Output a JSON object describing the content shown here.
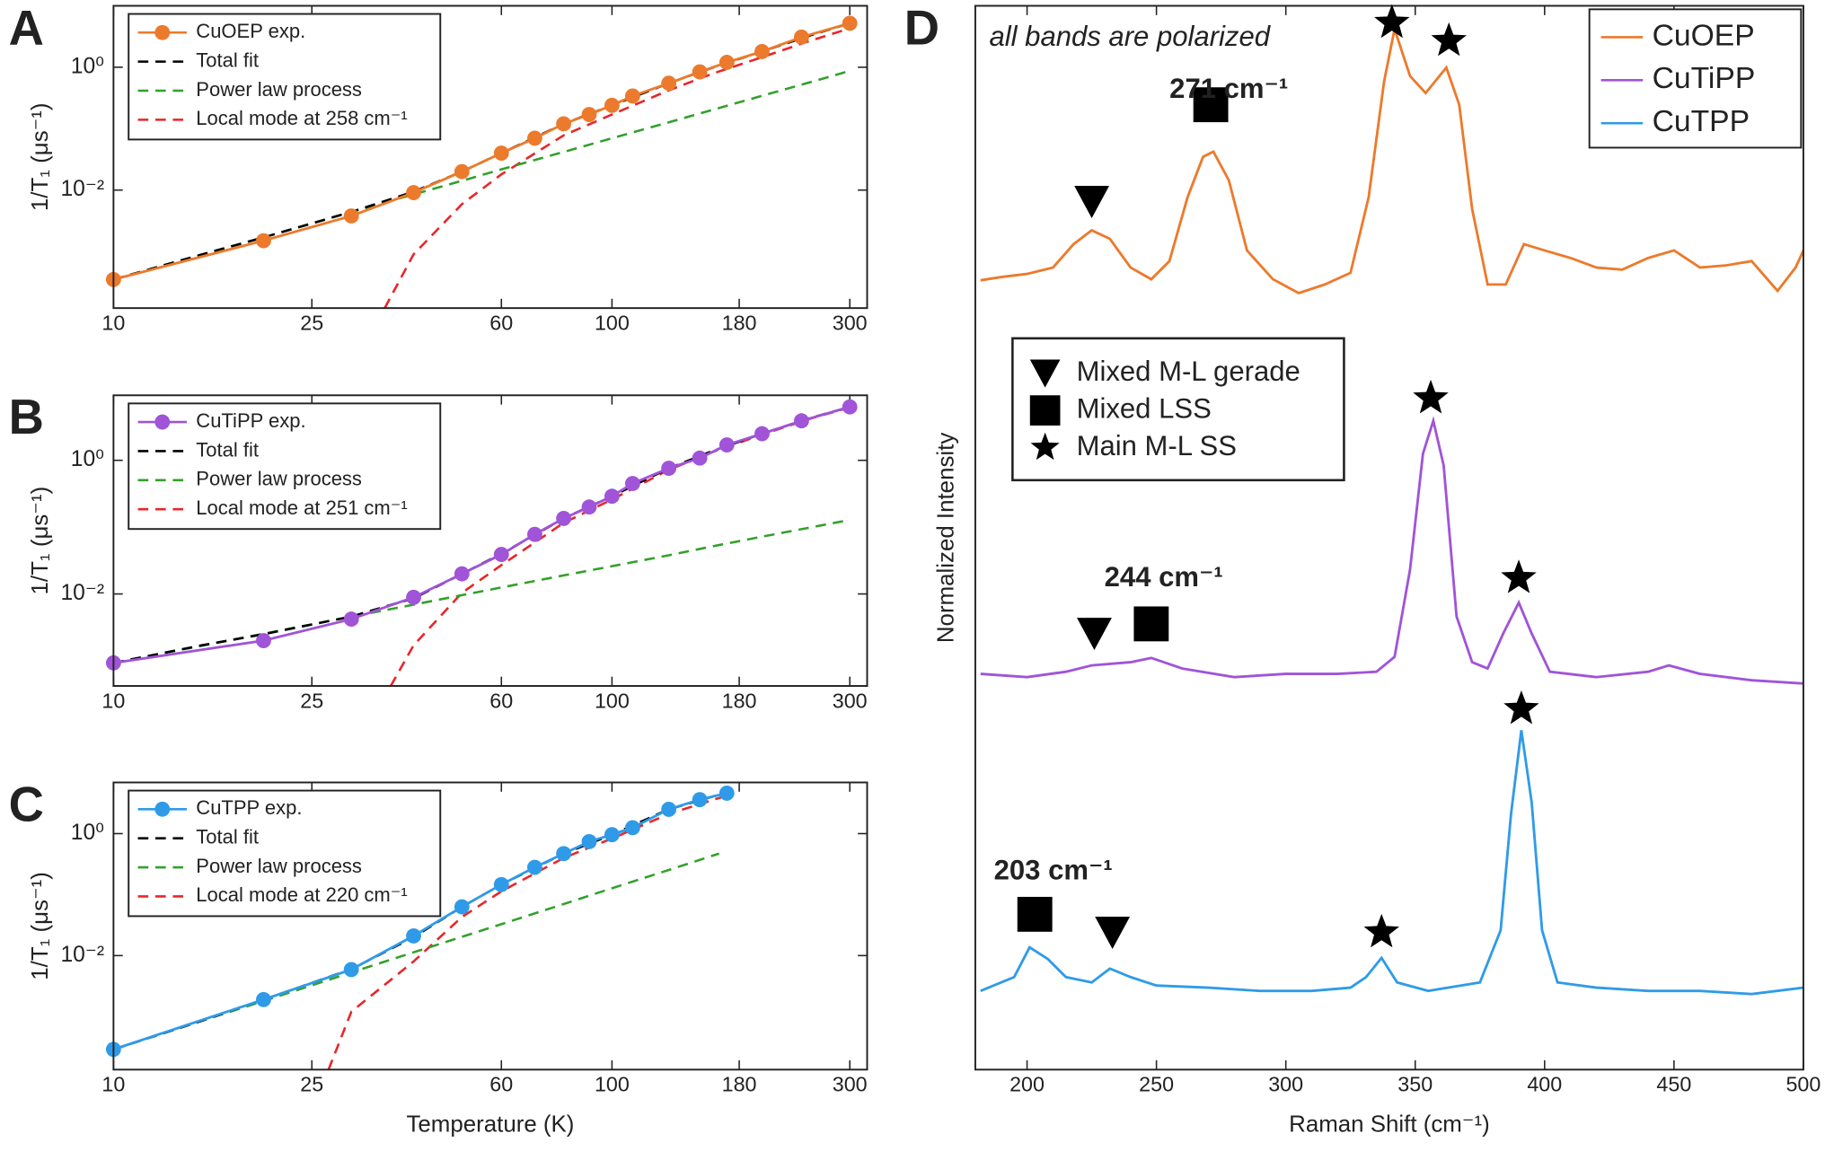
{
  "chart_data": [
    {
      "type": "line",
      "panel_label": "A",
      "xscale": "log",
      "yscale": "log",
      "ylabel": "1/T₁ (μs⁻¹)",
      "xlim": [
        10,
        325
      ],
      "xticks": [
        10,
        25,
        60,
        100,
        180,
        300
      ],
      "ylim": [
        0.00012,
        10
      ],
      "yticks": [
        {
          "value": 0.01,
          "label": "10⁻²"
        },
        {
          "value": 1,
          "label": "10⁰"
        }
      ],
      "legend": "upper left",
      "series": [
        {
          "name": "CuOEP exp.",
          "color": "#ec7a2c",
          "style": "solid",
          "marker": "circle",
          "x": [
            10,
            20,
            30,
            40,
            50,
            60,
            70,
            80,
            90,
            100,
            110,
            130,
            150,
            170,
            200,
            240,
            300
          ],
          "values": [
            0.00035,
            0.0015,
            0.0038,
            0.0091,
            0.02,
            0.04,
            0.07,
            0.12,
            0.17,
            0.24,
            0.34,
            0.55,
            0.84,
            1.2,
            1.8,
            3.1,
            5.2
          ]
        },
        {
          "name": "Total fit",
          "color": "#000000",
          "style": "dashed",
          "x": [
            10,
            15,
            20,
            30,
            40,
            50,
            60,
            80,
            100,
            130,
            160,
            200,
            250,
            300
          ],
          "values": [
            0.00035,
            0.00089,
            0.0017,
            0.0044,
            0.0094,
            0.02,
            0.04,
            0.12,
            0.24,
            0.55,
            1.0,
            1.8,
            3.3,
            5.2
          ]
        },
        {
          "name": "Power law process",
          "color": "#33a02c",
          "style": "dashed",
          "x": [
            10,
            15,
            20,
            30,
            40,
            50,
            60,
            80,
            100,
            130,
            160,
            200,
            250,
            300
          ],
          "values": [
            0.00035,
            0.00089,
            0.0017,
            0.0044,
            0.0085,
            0.0142,
            0.0217,
            0.0417,
            0.07,
            0.127,
            0.205,
            0.343,
            0.57,
            0.87
          ]
        },
        {
          "name": "Local mode at 258 cm⁻¹",
          "color": "#e8262a",
          "style": "dashed",
          "x": [
            35,
            40,
            50,
            60,
            80,
            100,
            130,
            160,
            200,
            250,
            300
          ],
          "values": [
            0.00012,
            0.0009,
            0.0059,
            0.018,
            0.078,
            0.17,
            0.42,
            0.8,
            1.46,
            2.7,
            4.3
          ]
        }
      ]
    },
    {
      "type": "line",
      "panel_label": "B",
      "xscale": "log",
      "yscale": "log",
      "ylabel": "1/T₁ (μs⁻¹)",
      "xlim": [
        10,
        325
      ],
      "xticks": [
        10,
        25,
        60,
        100,
        180,
        300
      ],
      "ylim": [
        0.00042,
        9.4
      ],
      "yticks": [
        {
          "value": 0.01,
          "label": "10⁻²"
        },
        {
          "value": 1,
          "label": "10⁰"
        }
      ],
      "legend": "upper left",
      "series": [
        {
          "name": "CuTiPP exp.",
          "color": "#a054d8",
          "style": "solid",
          "marker": "circle",
          "x": [
            10,
            20,
            30,
            40,
            50,
            60,
            70,
            80,
            90,
            100,
            110,
            130,
            150,
            170,
            200,
            240,
            300
          ],
          "values": [
            0.00093,
            0.002,
            0.0042,
            0.0089,
            0.02,
            0.039,
            0.078,
            0.135,
            0.2,
            0.29,
            0.45,
            0.76,
            1.08,
            1.7,
            2.5,
            3.9,
            6.3
          ]
        },
        {
          "name": "Total fit",
          "color": "#000000",
          "style": "dashed",
          "x": [
            10,
            15,
            20,
            30,
            40,
            50,
            60,
            80,
            100,
            130,
            160,
            200,
            250,
            300
          ],
          "values": [
            0.00093,
            0.0017,
            0.0025,
            0.0046,
            0.0086,
            0.02,
            0.04,
            0.135,
            0.29,
            0.76,
            1.4,
            2.5,
            4.3,
            6.3
          ]
        },
        {
          "name": "Power law process",
          "color": "#33a02c",
          "style": "dashed",
          "x": [
            10,
            15,
            20,
            30,
            40,
            50,
            60,
            80,
            100,
            130,
            160,
            200,
            250,
            300
          ],
          "values": [
            0.00093,
            0.00167,
            0.00254,
            0.00458,
            0.0069,
            0.0096,
            0.0125,
            0.019,
            0.026,
            0.038,
            0.052,
            0.072,
            0.099,
            0.128
          ]
        },
        {
          "name": "Local mode at 251 cm⁻¹",
          "color": "#e8262a",
          "style": "dashed",
          "x": [
            36,
            40,
            50,
            60,
            80,
            100,
            130,
            160,
            200,
            250,
            300
          ],
          "values": [
            0.00042,
            0.0017,
            0.0104,
            0.027,
            0.116,
            0.26,
            0.72,
            1.35,
            2.43,
            4.2,
            6.2
          ]
        }
      ]
    },
    {
      "type": "line",
      "panel_label": "C",
      "xscale": "log",
      "yscale": "log",
      "ylabel": "1/T₁ (μs⁻¹)",
      "xlabel": "Temperature (K)",
      "xlim": [
        10,
        325
      ],
      "xticks": [
        10,
        25,
        60,
        100,
        180,
        300
      ],
      "ylim": [
        0.000135,
        6.9
      ],
      "yticks": [
        {
          "value": 0.01,
          "label": "10⁻²"
        },
        {
          "value": 1,
          "label": "10⁰"
        }
      ],
      "legend": "upper left",
      "series": [
        {
          "name": "CuTPP exp.",
          "color": "#2f9be8",
          "style": "solid",
          "marker": "circle",
          "x": [
            10,
            20,
            30,
            40,
            50,
            60,
            70,
            80,
            90,
            100,
            110,
            130,
            150,
            170
          ],
          "values": [
            0.00029,
            0.0019,
            0.0059,
            0.021,
            0.063,
            0.146,
            0.28,
            0.47,
            0.74,
            0.96,
            1.25,
            2.5,
            3.6,
            4.6
          ]
        },
        {
          "name": "Total fit",
          "color": "#000000",
          "style": "dashed",
          "x": [
            10,
            15,
            20,
            30,
            40,
            50,
            60,
            80,
            100,
            130,
            160,
            170
          ],
          "values": [
            0.00029,
            0.00085,
            0.0019,
            0.006,
            0.02,
            0.063,
            0.146,
            0.47,
            0.96,
            2.5,
            4.1,
            4.6
          ]
        },
        {
          "name": "Power law process",
          "color": "#33a02c",
          "style": "dashed",
          "x": [
            10,
            15,
            20,
            30,
            40,
            50,
            60,
            80,
            100,
            130,
            164
          ],
          "values": [
            0.00029,
            0.00085,
            0.0018,
            0.0053,
            0.0113,
            0.0203,
            0.0328,
            0.07,
            0.127,
            0.253,
            0.47
          ]
        },
        {
          "name": "Local mode at 220 cm⁻¹",
          "color": "#e8262a",
          "style": "dashed",
          "x": [
            27,
            30,
            40,
            50,
            60,
            80,
            100,
            130,
            160,
            170
          ],
          "values": [
            0.000135,
            0.0012,
            0.008,
            0.043,
            0.113,
            0.4,
            0.83,
            2.1,
            3.6,
            4.2
          ]
        }
      ]
    },
    {
      "type": "line",
      "panel_label": "D",
      "xlabel": "Raman Shift (cm⁻¹)",
      "ylabel": "Normalized Intensity",
      "xlim": [
        180,
        500
      ],
      "xticks": [
        200,
        250,
        300,
        350,
        400,
        450,
        500
      ],
      "ylim": [
        0,
        10
      ],
      "legend": "upper right",
      "annotation": "all bands are polarized",
      "series": [
        {
          "name": "CuOEP",
          "color": "#ec7a2c",
          "style": "solid",
          "x": [
            182,
            190,
            200,
            210,
            218,
            225,
            232,
            240,
            248,
            255,
            262,
            268,
            272,
            278,
            285,
            295,
            305,
            315,
            325,
            332,
            338,
            342,
            348,
            354,
            362,
            367,
            372,
            378,
            385,
            392,
            400,
            410,
            420,
            430,
            440,
            450,
            460,
            470,
            480,
            490,
            497,
            500
          ],
          "values": [
            7.42,
            7.45,
            7.48,
            7.54,
            7.76,
            7.89,
            7.81,
            7.54,
            7.43,
            7.6,
            8.2,
            8.58,
            8.63,
            8.36,
            7.7,
            7.43,
            7.3,
            7.38,
            7.49,
            8.2,
            9.29,
            9.78,
            9.34,
            9.18,
            9.42,
            9.07,
            8.09,
            7.38,
            7.38,
            7.76,
            7.7,
            7.63,
            7.54,
            7.52,
            7.63,
            7.7,
            7.54,
            7.56,
            7.6,
            7.32,
            7.54,
            7.7
          ]
        },
        {
          "name": "CuTiPP",
          "color": "#a054d8",
          "style": "solid",
          "x": [
            182,
            200,
            215,
            225,
            240,
            248,
            260,
            280,
            300,
            320,
            335,
            342,
            348,
            353,
            357,
            361,
            366,
            372,
            378,
            384,
            390,
            395,
            402,
            420,
            440,
            448,
            460,
            480,
            500
          ],
          "values": [
            3.72,
            3.69,
            3.74,
            3.8,
            3.83,
            3.87,
            3.77,
            3.69,
            3.72,
            3.72,
            3.74,
            3.88,
            4.7,
            5.79,
            6.1,
            5.68,
            4.26,
            3.83,
            3.77,
            4.1,
            4.39,
            4.1,
            3.74,
            3.69,
            3.74,
            3.8,
            3.72,
            3.66,
            3.63
          ]
        },
        {
          "name": "CuTPP",
          "color": "#2f9be8",
          "style": "solid",
          "x": [
            182,
            195,
            201,
            208,
            215,
            225,
            232,
            240,
            250,
            270,
            290,
            310,
            325,
            331,
            337,
            343,
            355,
            375,
            383,
            387,
            391,
            395,
            399,
            405,
            420,
            440,
            460,
            480,
            500
          ],
          "values": [
            0.74,
            0.87,
            1.15,
            1.04,
            0.87,
            0.82,
            0.95,
            0.87,
            0.79,
            0.77,
            0.74,
            0.74,
            0.77,
            0.87,
            1.05,
            0.82,
            0.74,
            0.82,
            1.31,
            2.4,
            3.19,
            2.51,
            1.31,
            0.82,
            0.77,
            0.74,
            0.74,
            0.71,
            0.77
          ]
        }
      ],
      "band_legend": [
        {
          "label": "Mixed M-L gerade",
          "symbol": "triangle"
        },
        {
          "label": "Mixed LSS",
          "symbol": "square"
        },
        {
          "label": "Main M-L SS",
          "symbol": "star"
        }
      ],
      "band_markers": [
        {
          "symbol": "triangle",
          "x": 225,
          "y": 8.16
        },
        {
          "symbol": "square",
          "x": 271,
          "y": 9.07
        },
        {
          "symbol": "star",
          "x": 341,
          "y": 9.84
        },
        {
          "symbol": "star",
          "x": 363,
          "y": 9.67
        },
        {
          "symbol": "triangle",
          "x": 226,
          "y": 4.1
        },
        {
          "symbol": "square",
          "x": 248,
          "y": 4.19
        },
        {
          "symbol": "star",
          "x": 356,
          "y": 6.31
        },
        {
          "symbol": "star",
          "x": 390,
          "y": 4.62
        },
        {
          "symbol": "square",
          "x": 203,
          "y": 1.46
        },
        {
          "symbol": "triangle",
          "x": 233,
          "y": 1.29
        },
        {
          "symbol": "star",
          "x": 337,
          "y": 1.29
        },
        {
          "symbol": "star",
          "x": 391,
          "y": 3.39
        }
      ],
      "peak_labels": [
        "271 cm⁻¹",
        "244 cm⁻¹",
        "203 cm⁻¹"
      ]
    }
  ]
}
